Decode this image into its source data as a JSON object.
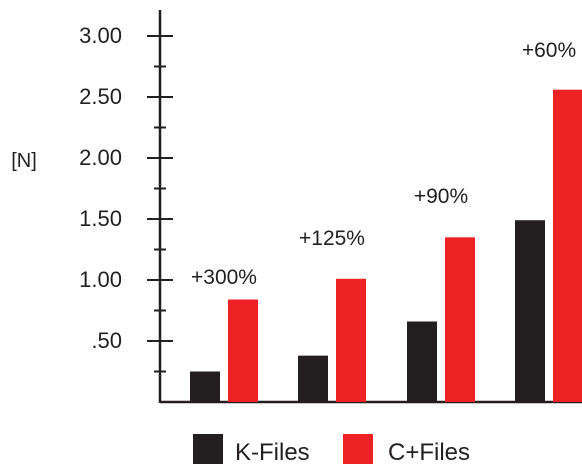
{
  "chart_data": {
    "type": "bar",
    "title": "",
    "xlabel": "",
    "ylabel": "[N]",
    "ylim": [
      0,
      3.2
    ],
    "grid": false,
    "legend_position": "bottom",
    "y_ticks": [
      {
        "value": 3.0,
        "label": "3.00"
      },
      {
        "value": 2.5,
        "label": "2.50"
      },
      {
        "value": 2.0,
        "label": "2.00"
      },
      {
        "value": 1.5,
        "label": "1.50"
      },
      {
        "value": 1.0,
        "label": "1.00"
      },
      {
        "value": 0.5,
        "label": ".50"
      }
    ],
    "y_minor_ticks": [
      0.25,
      0.75,
      1.25,
      1.75,
      2.25,
      2.75
    ],
    "categories": [
      "",
      "",
      "",
      ""
    ],
    "series": [
      {
        "name": "K-Files",
        "color": "#231f20",
        "values": [
          0.25,
          0.38,
          0.66,
          1.49
        ]
      },
      {
        "name": "C+Files",
        "color": "#ee2224",
        "values": [
          0.84,
          1.01,
          1.35,
          2.56
        ]
      }
    ],
    "annotations": [
      "+300%",
      "+125%",
      "+90%",
      "+60%"
    ]
  },
  "colors": {
    "axis": "#231f20",
    "text": "#231f20"
  }
}
